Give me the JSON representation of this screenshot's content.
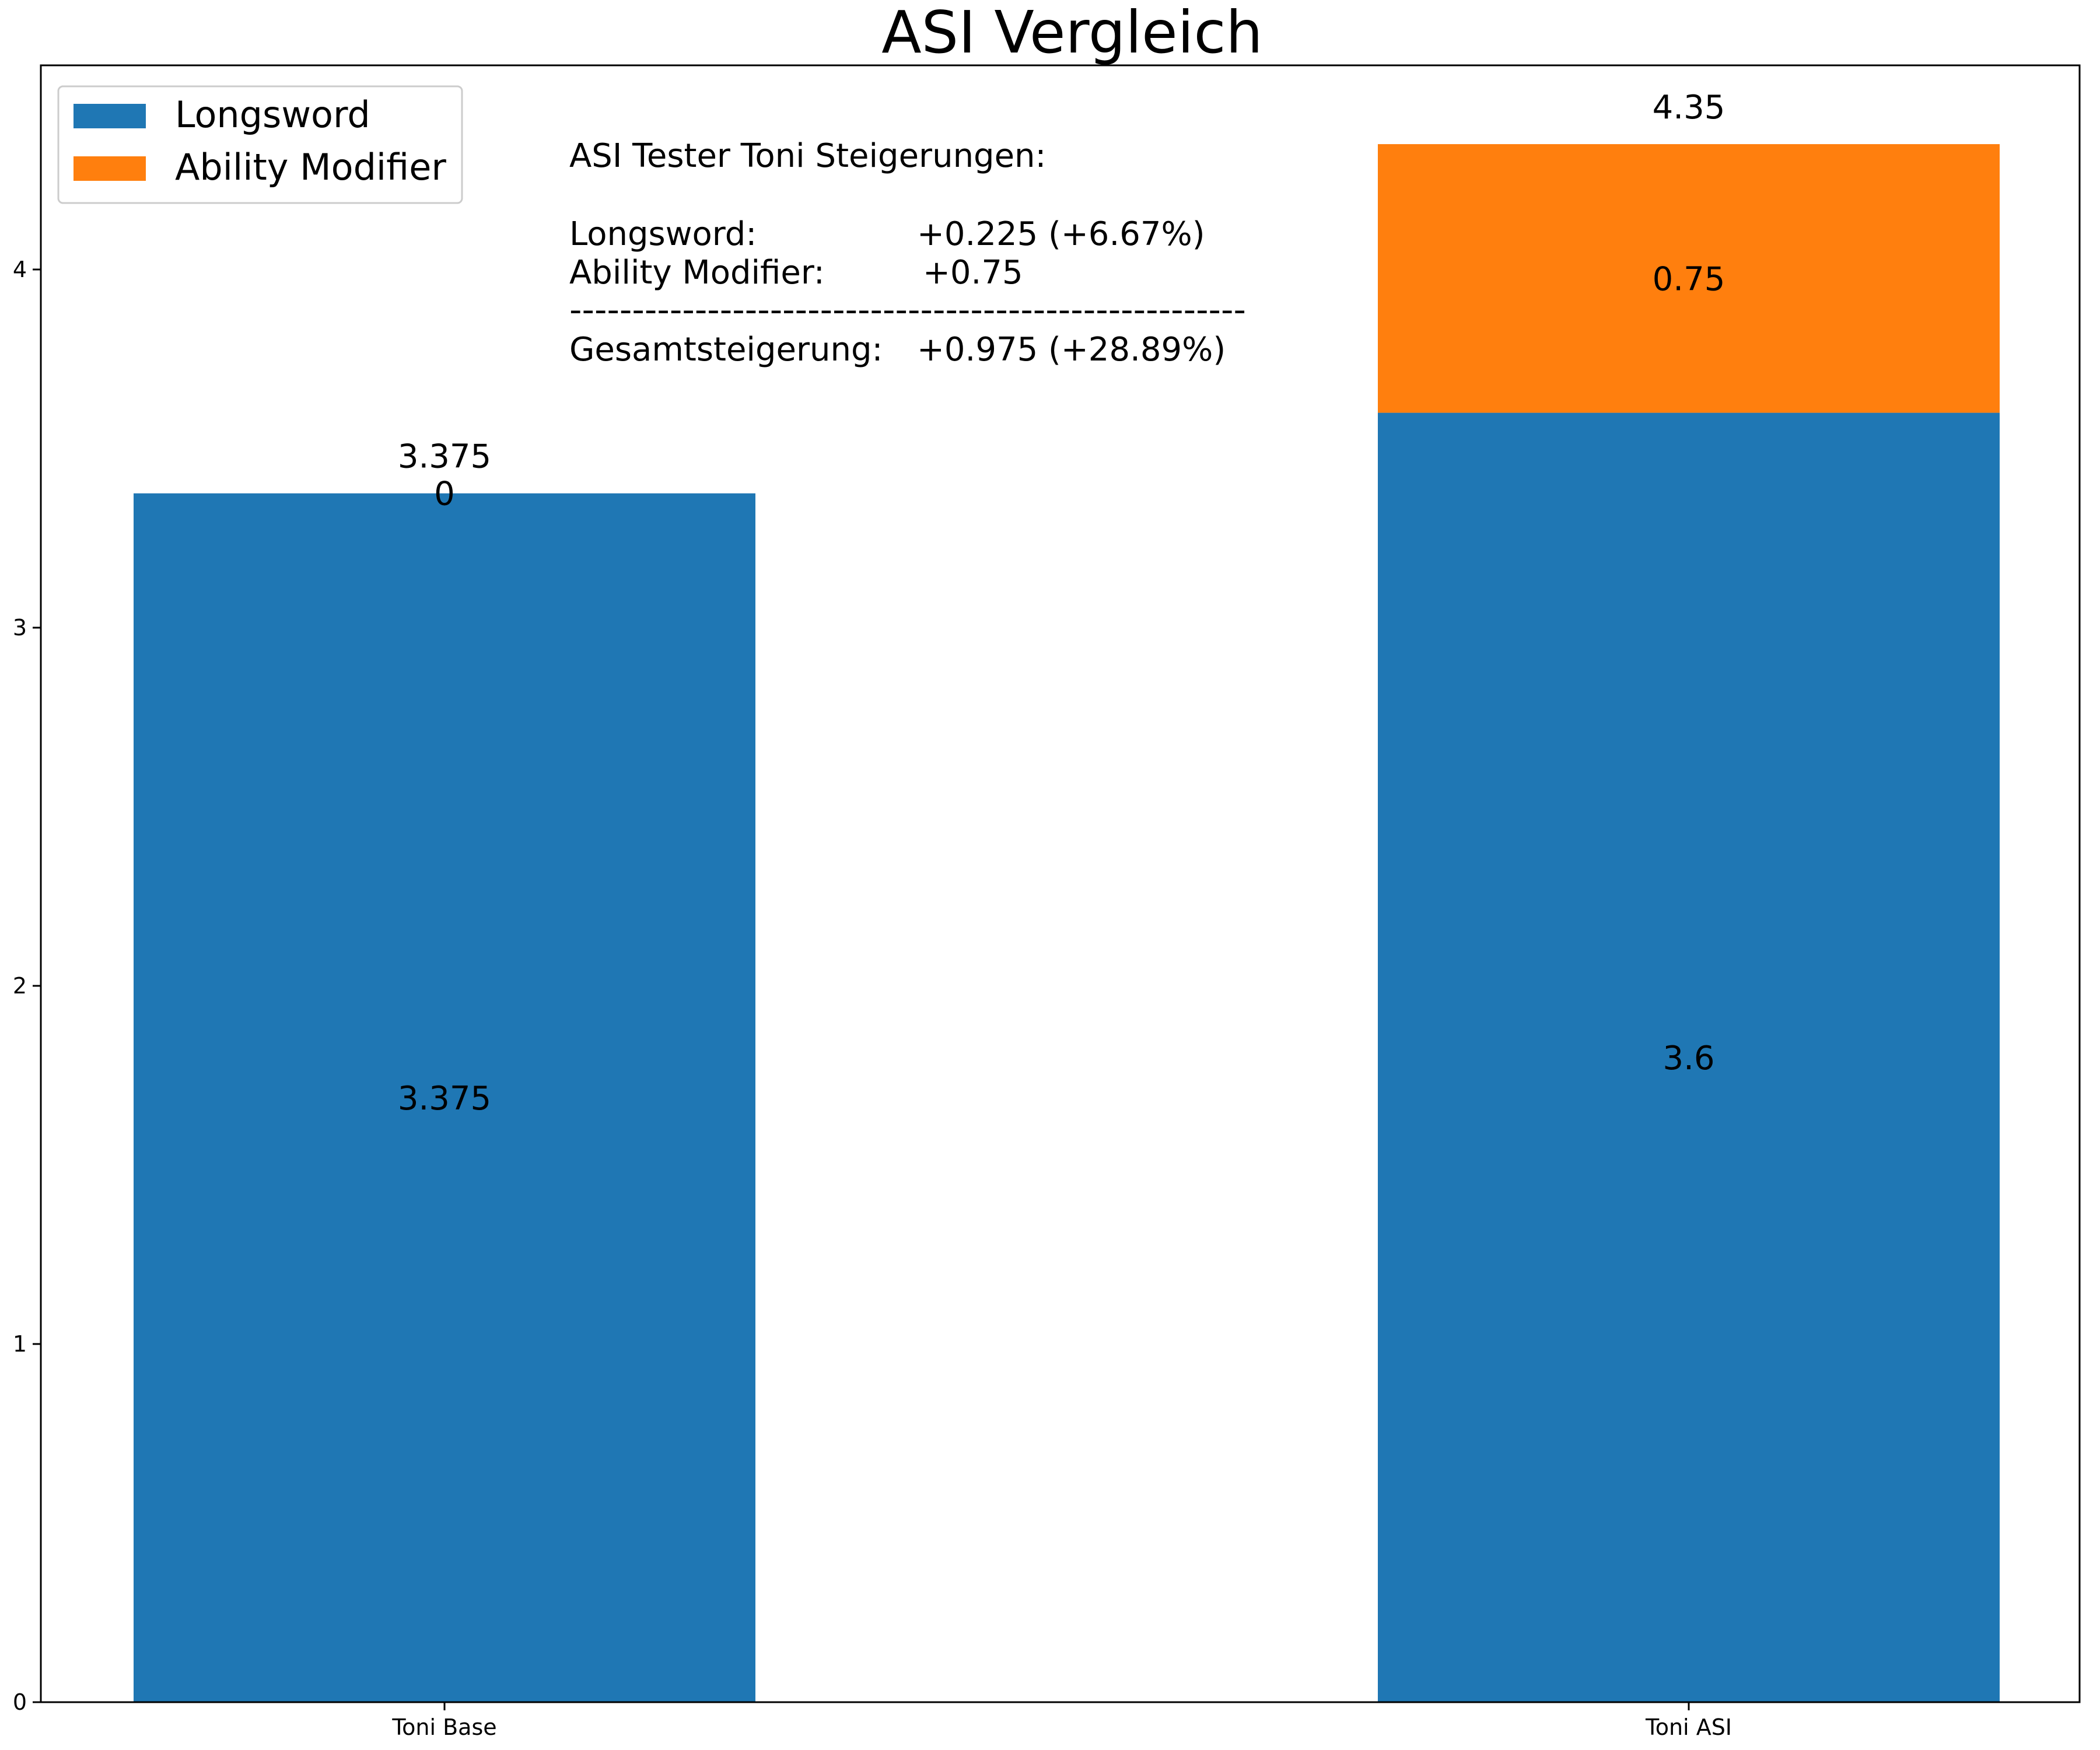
{
  "chart_data": {
    "type": "bar",
    "stacked": true,
    "title": "ASI Vergleich",
    "xlabel": "",
    "ylabel": "",
    "categories": [
      "Toni Base",
      "Toni ASI"
    ],
    "series": [
      {
        "name": "Longsword",
        "values": [
          3.375,
          3.6
        ],
        "labels": [
          "3.375",
          "3.6"
        ],
        "color": "#1f77b4"
      },
      {
        "name": "Ability Modifier",
        "values": [
          0,
          0.75
        ],
        "labels": [
          "0",
          "0.75"
        ],
        "color": "#ff7f0e"
      }
    ],
    "totals": [
      3.375,
      4.35
    ],
    "total_labels": [
      "3.375",
      "4.35"
    ],
    "ylim": [
      0,
      4.57
    ],
    "yticks": [
      0,
      1,
      2,
      3,
      4
    ],
    "grid": false,
    "legend_position": "top-left",
    "annotation": {
      "heading": "ASI Tester Toni Steigerungen:",
      "rows": [
        {
          "label": "Longsword:",
          "value": "+0.225 (+6.67%)"
        },
        {
          "label": "Ability Modifier:",
          "value": "+0.75"
        }
      ],
      "divider": "------------------------------------------------------",
      "total": {
        "label": "Gesamtsteigerung:",
        "value": "+0.975 (+28.89%)"
      }
    }
  }
}
